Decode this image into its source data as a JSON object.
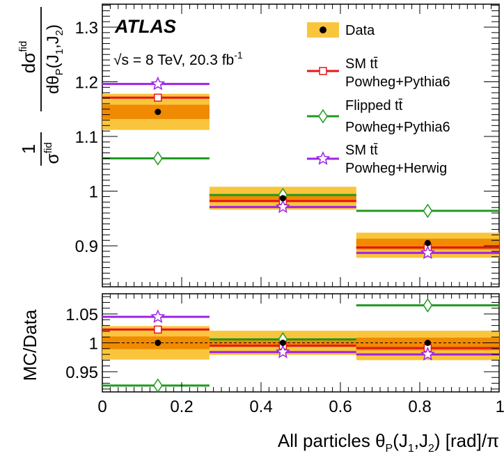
{
  "chart_data": {
    "type": "scatter",
    "experiment": "ATLAS",
    "energy_label": "√s = 8 TeV, 20.3 fb",
    "energy_label_sup": "-1",
    "xlabel": "All particles θP(J1,J2) [rad]/π",
    "ylabel_main": "1/σfid dσfid/dθP(J1,J2)",
    "ylabel_ratio": "MC/Data",
    "x_range": [
      0,
      1
    ],
    "bins": [
      [
        0,
        0.27
      ],
      [
        0.27,
        0.64
      ],
      [
        0.64,
        1.0
      ]
    ],
    "bin_centers": [
      0.14,
      0.455,
      0.82
    ],
    "main_ylim": [
      0.825,
      1.342
    ],
    "ratio_ylim": [
      0.915,
      1.085
    ],
    "xticks": [
      "0",
      "0.2",
      "0.4",
      "0.6",
      "0.8",
      "1"
    ],
    "main_yticks": [
      "0.9",
      "1",
      "1.1",
      "1.2",
      "1.3"
    ],
    "ratio_yticks": [
      "0.95",
      "1",
      "1.05"
    ],
    "data": {
      "name": "Data",
      "values": [
        1.145,
        0.987,
        0.905
      ],
      "stat_band": [
        [
          1.132,
          1.158
        ],
        [
          0.98,
          0.994
        ],
        [
          0.893,
          0.913
        ]
      ],
      "total_band": [
        [
          1.112,
          1.178
        ],
        [
          0.966,
          1.008
        ],
        [
          0.878,
          0.924
        ]
      ]
    },
    "series": [
      {
        "name": "SM tt̄ Powheg+Pythia6",
        "color": "#e8151a",
        "marker": "square",
        "values": [
          1.171,
          0.982,
          0.897
        ],
        "ratio": [
          1.023,
          0.995,
          0.991
        ]
      },
      {
        "name": "Flipped tt̄ Powheg+Pythia6",
        "color": "#1f9a1f",
        "marker": "diamond",
        "values": [
          1.06,
          0.993,
          0.964
        ],
        "ratio": [
          0.926,
          1.006,
          1.065
        ]
      },
      {
        "name": "SM tt̄ Powheg+Herwig",
        "color": "#9e23e6",
        "marker": "star",
        "values": [
          1.196,
          0.971,
          0.887
        ],
        "ratio": [
          1.045,
          0.984,
          0.98
        ]
      }
    ],
    "ratio_data": {
      "values": [
        1.0,
        1.0,
        1.0
      ],
      "stat_band": [
        [
          0.989,
          1.011
        ],
        [
          0.993,
          1.007
        ],
        [
          0.987,
          1.009
        ]
      ],
      "total_band": [
        [
          0.971,
          1.029
        ],
        [
          0.979,
          1.021
        ],
        [
          0.97,
          1.021
        ]
      ]
    },
    "legend_position": "top-right",
    "colors": {
      "stat_band": "#f08a00",
      "total_band": "#f9c53c"
    }
  }
}
